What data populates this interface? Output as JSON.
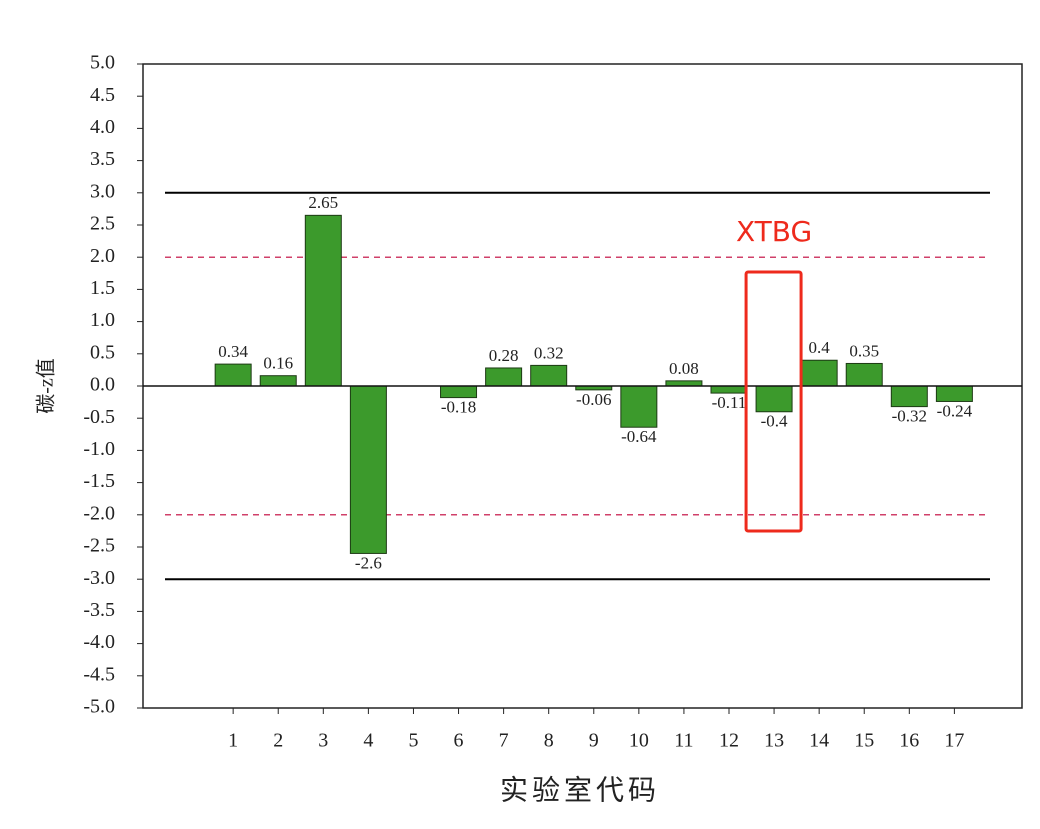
{
  "chart_data": {
    "type": "bar",
    "x": [
      1,
      2,
      3,
      4,
      5,
      6,
      7,
      8,
      9,
      10,
      11,
      12,
      13,
      14,
      15,
      16,
      17
    ],
    "values": [
      0.34,
      0.16,
      2.65,
      -2.6,
      null,
      -0.18,
      0.28,
      0.32,
      -0.06,
      -0.64,
      0.08,
      -0.11,
      -0.4,
      0.4,
      0.35,
      -0.32,
      -0.24
    ],
    "color": "#3c9a2c",
    "xlim": [
      -1,
      18.5
    ],
    "xticks": [
      1,
      2,
      3,
      4,
      5,
      6,
      7,
      8,
      9,
      10,
      11,
      12,
      13,
      14,
      15,
      16,
      17
    ],
    "ylim": [
      -5,
      5
    ],
    "yticks": [
      {
        "value": -5,
        "label": "-5.0"
      },
      -4.5,
      {
        "value": -4,
        "label": "-4.0"
      },
      -3.5,
      {
        "value": -3,
        "label": "-3.0"
      },
      -2.5,
      {
        "value": -2,
        "label": "-2.0"
      },
      -1.5,
      {
        "value": -1,
        "label": "-1.0"
      },
      -0.5,
      {
        "value": 0,
        "label": "0.0"
      },
      0.5,
      {
        "value": 1,
        "label": "1.0"
      },
      1.5,
      {
        "value": 2,
        "label": "2.0"
      },
      2.5,
      {
        "value": 3,
        "label": "3.0"
      },
      3.5,
      {
        "value": 4,
        "label": "4.0"
      },
      4.5,
      {
        "value": 5,
        "label": "5.0"
      }
    ],
    "ylabel": "碳-z值",
    "xlabel": "实验室代码",
    "reference_lines": [
      {
        "value": 3,
        "style": "solid",
        "color": "#000000"
      },
      {
        "value": -3,
        "style": "solid",
        "color": "#000000"
      },
      {
        "value": 2,
        "style": "dashed",
        "color": "#d0406a"
      },
      {
        "value": -2,
        "style": "dashed",
        "color": "#d0406a"
      }
    ],
    "annotation": {
      "text": "XTBG",
      "x": 13,
      "color": "#ee2a1c"
    }
  }
}
